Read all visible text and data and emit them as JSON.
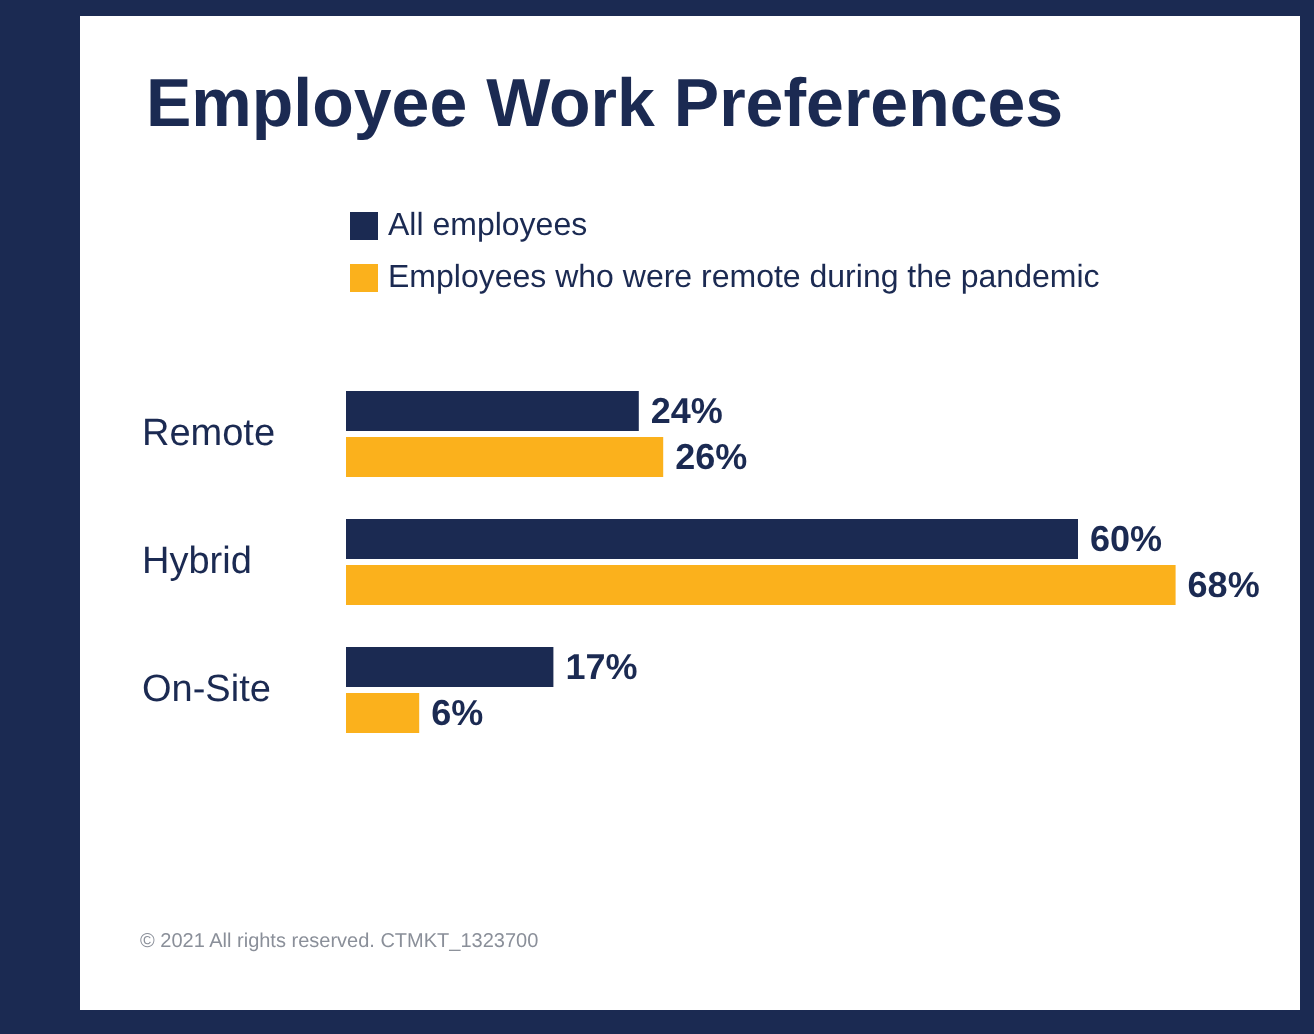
{
  "chart_data": {
    "type": "bar",
    "orientation": "horizontal",
    "title": "Employee Work Preferences",
    "categories": [
      "Remote",
      "Hybrid",
      "On-Site"
    ],
    "series": [
      {
        "name": "All employees",
        "color": "#1b2a52",
        "values": [
          24,
          60,
          17
        ],
        "value_labels": [
          "24%",
          "60%",
          "17%"
        ]
      },
      {
        "name": "Employees who were remote during the pandemic",
        "color": "#fbb11c",
        "values": [
          26,
          68,
          6
        ],
        "value_labels": [
          "26%",
          "68%",
          "6%"
        ]
      }
    ],
    "legend": "top",
    "annotations": [
      "© 2021 All rights reserved. CTMKT_1323700"
    ]
  }
}
